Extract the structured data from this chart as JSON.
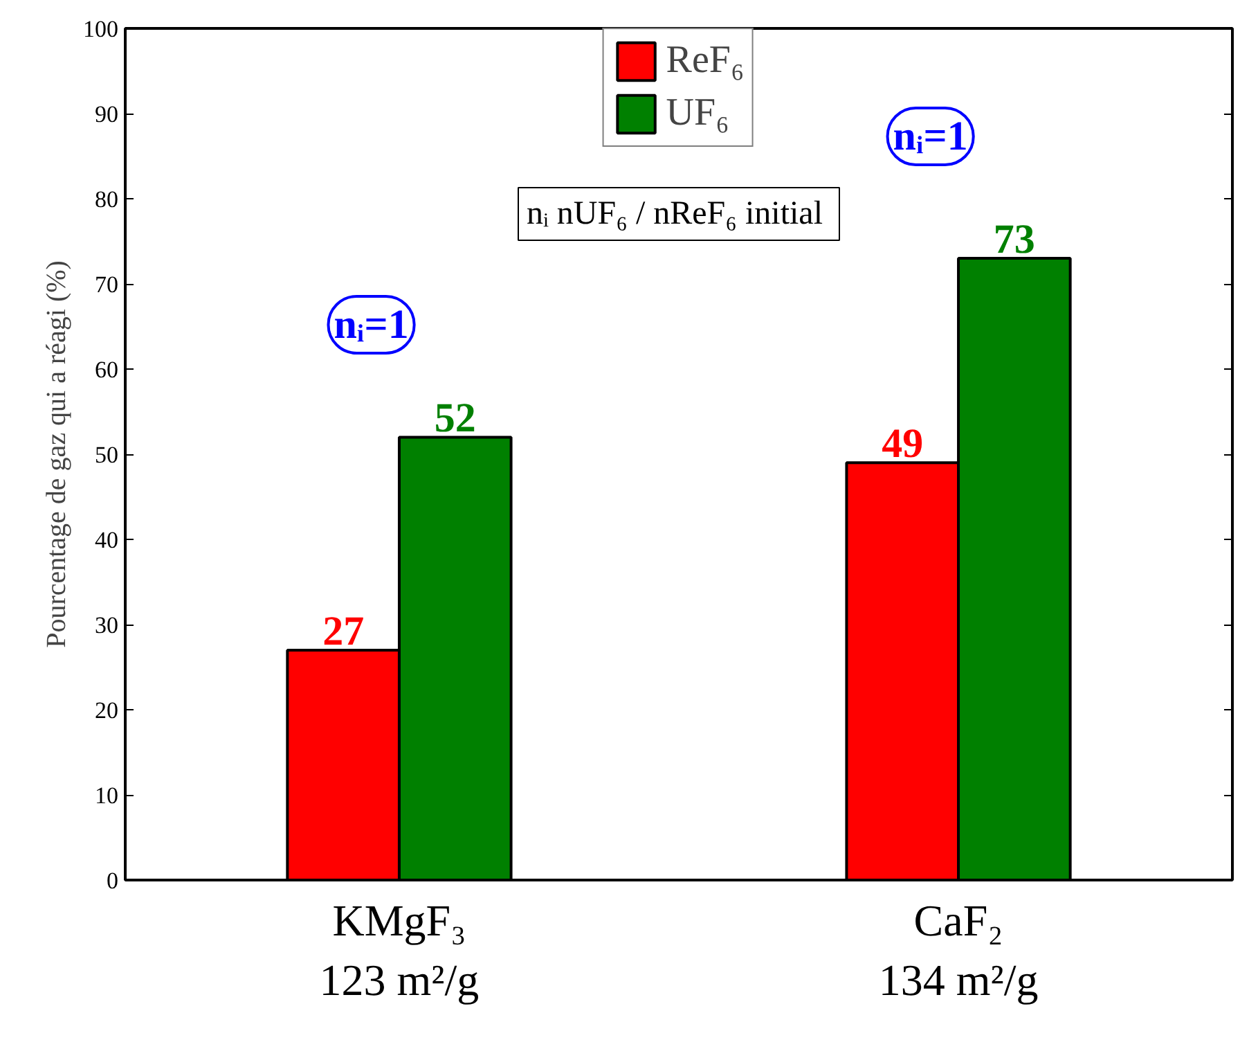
{
  "chart_data": {
    "type": "bar",
    "ylabel": "Pourcentage de gaz qui a réagi (%)",
    "categories": [
      "KMgF₃\n123 m²/g",
      "CaF₂\n134 m²/g"
    ],
    "series": [
      {
        "name": "ReF₆",
        "color": "#ff0000",
        "values": [
          27,
          49
        ]
      },
      {
        "name": "UF₆",
        "color": "#008000",
        "values": [
          52,
          73
        ]
      }
    ],
    "ylim": [
      0,
      100
    ],
    "yticks": [
      0,
      10,
      20,
      30,
      40,
      50,
      60,
      70,
      80,
      90,
      100
    ],
    "data_labels": true,
    "legend": "top",
    "grid": false,
    "annotations": [
      "nᵢ=1",
      "nᵢ=1",
      "nᵢ  nUF₆ / nReF₆ initial"
    ]
  }
}
